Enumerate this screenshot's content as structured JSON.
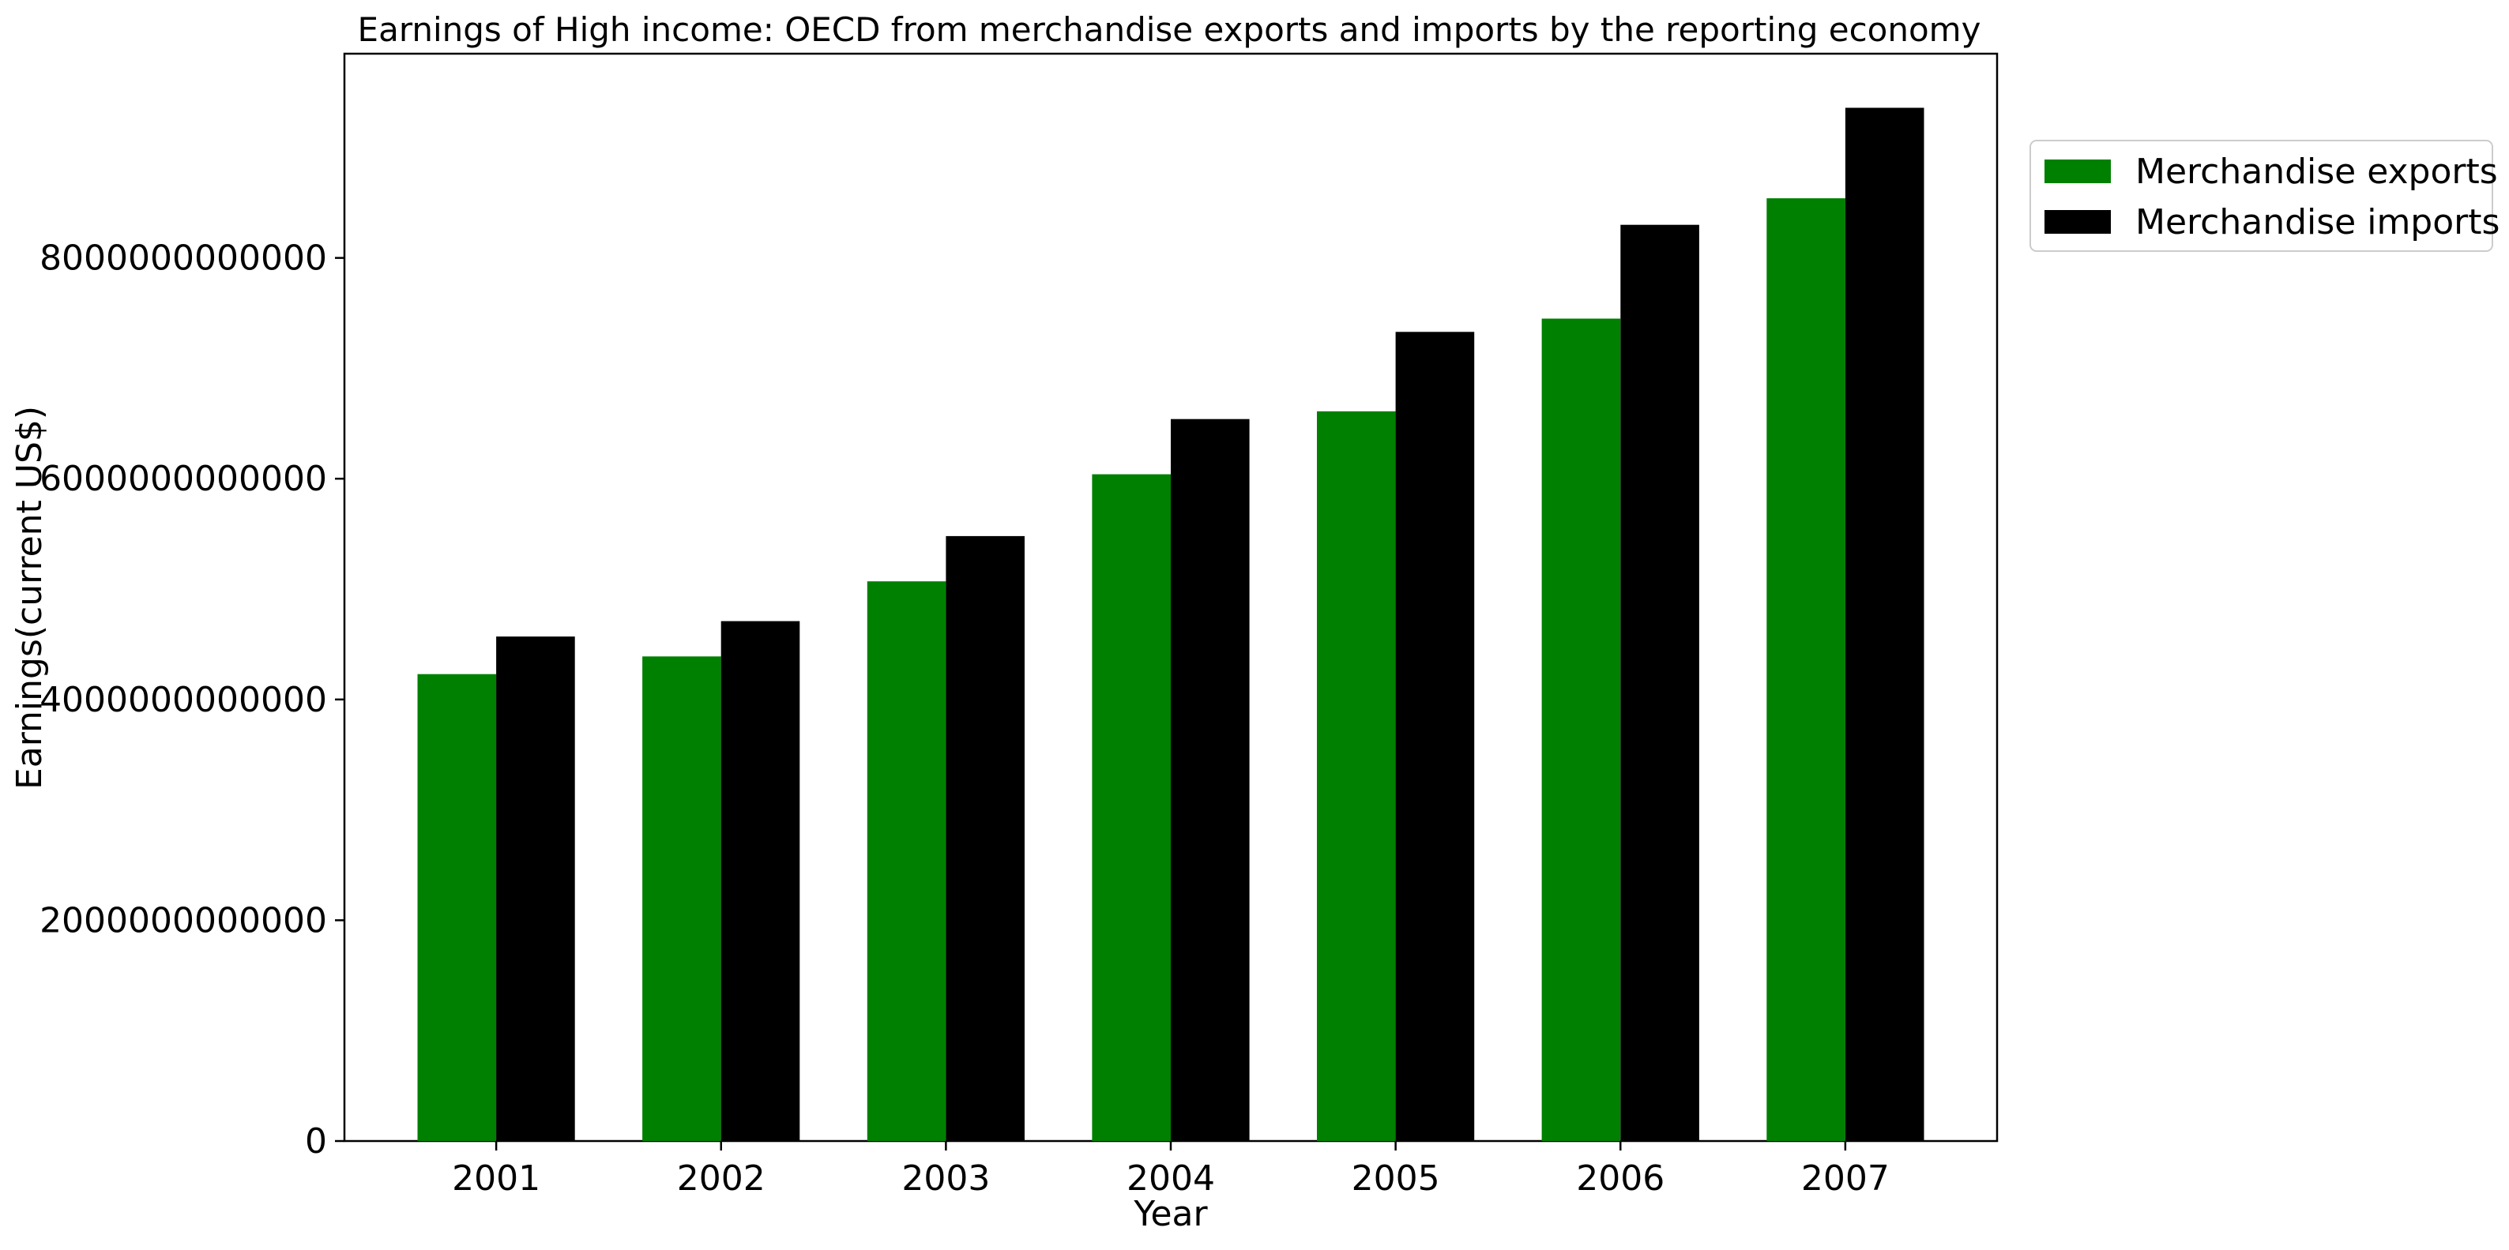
{
  "chart_data": {
    "type": "bar",
    "title": "Earnings of High income: OECD from merchandise exports and imports by the reporting economy",
    "xlabel": "Year",
    "ylabel": "Earnings(current US$)",
    "categories": [
      "2001",
      "2002",
      "2003",
      "2004",
      "2005",
      "2006",
      "2007"
    ],
    "series": [
      {
        "name": "Merchandise exports",
        "color": "#008000",
        "values": [
          4230000000000,
          4390000000000,
          5070000000000,
          6040000000000,
          6610000000000,
          7450000000000,
          8540000000000
        ]
      },
      {
        "name": "Merchandise imports",
        "color": "#000000",
        "values": [
          4570000000000,
          4710000000000,
          5480000000000,
          6540000000000,
          7330000000000,
          8300000000000,
          9360000000000
        ]
      }
    ],
    "ylim": [
      0,
      9850000000000
    ],
    "yticks": [
      "0",
      "2000000000000",
      "4000000000000",
      "6000000000000",
      "8000000000000"
    ],
    "grid": false,
    "legend": "top-right, outside plot"
  }
}
